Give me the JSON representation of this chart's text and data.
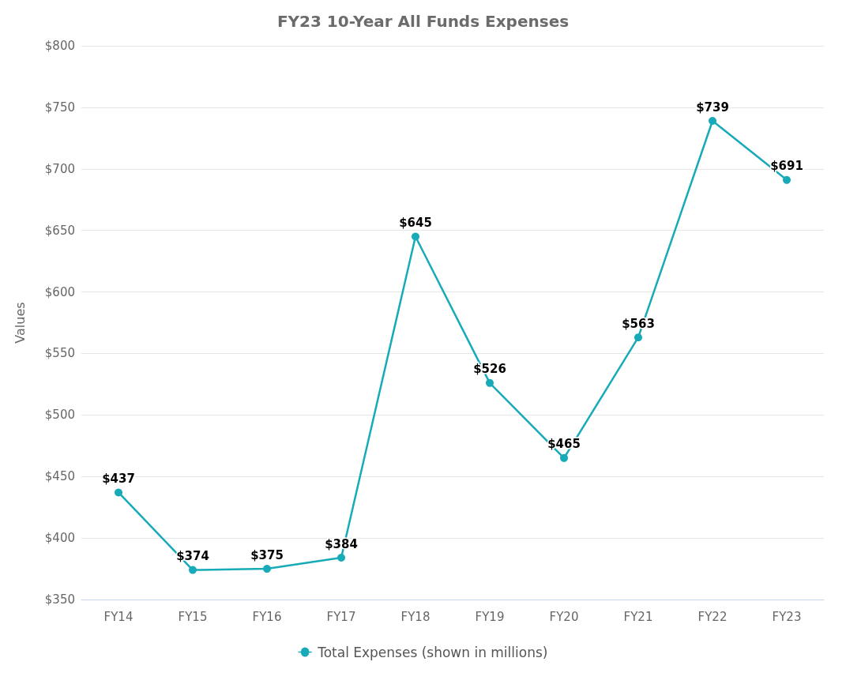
{
  "chart_data": {
    "type": "line",
    "title": "FY23 10-Year All Funds Expenses",
    "ylabel": "Values",
    "categories": [
      "FY14",
      "FY15",
      "FY16",
      "FY17",
      "FY18",
      "FY19",
      "FY20",
      "FY21",
      "FY22",
      "FY23"
    ],
    "series": [
      {
        "name": "Total Expenses (shown in millions)",
        "color": "#17aab8",
        "values": [
          437,
          374,
          375,
          384,
          645,
          526,
          465,
          563,
          739,
          691
        ],
        "value_labels": [
          "$437",
          "$374",
          "$375",
          "$384",
          "$645",
          "$526",
          "$465",
          "$563",
          "$739",
          "$691"
        ]
      }
    ],
    "ylim": [
      350,
      800
    ],
    "yticks": [
      {
        "value": 350,
        "label": "$350"
      },
      {
        "value": 400,
        "label": "$400"
      },
      {
        "value": 450,
        "label": "$450"
      },
      {
        "value": 500,
        "label": "$500"
      },
      {
        "value": 550,
        "label": "$550"
      },
      {
        "value": 600,
        "label": "$600"
      },
      {
        "value": 650,
        "label": "$650"
      },
      {
        "value": 700,
        "label": "$700"
      },
      {
        "value": 750,
        "label": "$750"
      },
      {
        "value": 800,
        "label": "$800"
      }
    ],
    "grid": "y",
    "legend": "bottom",
    "marker": "circle",
    "line_style": "solid"
  }
}
